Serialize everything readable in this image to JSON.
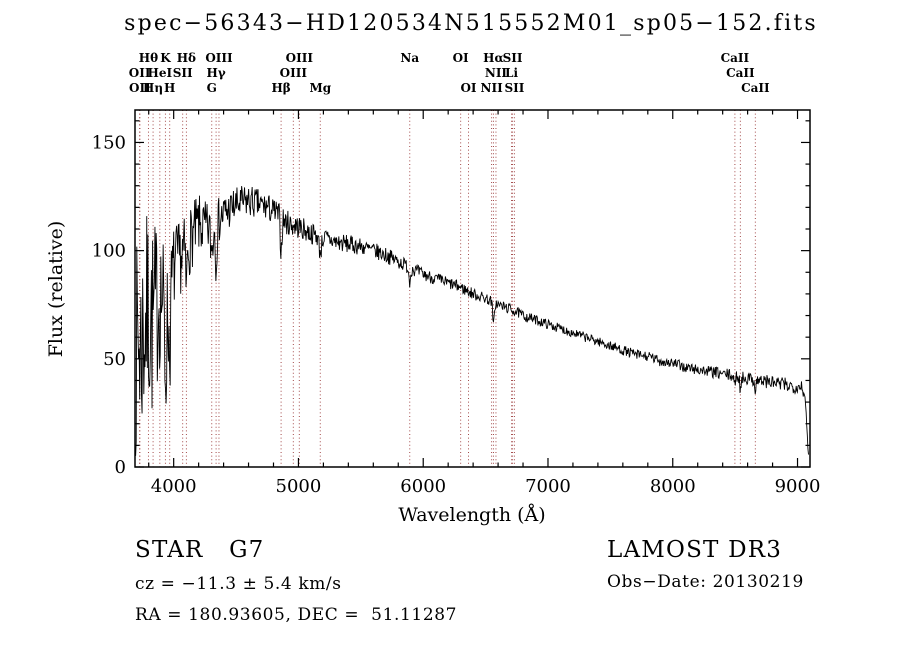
{
  "chart_data": {
    "type": "line",
    "title": "spec−56343−HD120534N515552M01_sp05−152.fits",
    "xlabel": "Wavelength (Å)",
    "ylabel": "Flux (relative)",
    "xlim": [
      3690,
      9100
    ],
    "ylim": [
      0,
      165
    ],
    "xticks": [
      4000,
      5000,
      6000,
      7000,
      8000,
      9000
    ],
    "yticks": [
      0,
      50,
      100,
      150
    ],
    "x_minor_step": 200,
    "y_minor_step": 10,
    "axis_color": "#000000",
    "spectrum_color": "#000000",
    "line_marker_color": "#a34a4a",
    "legend": "none",
    "grid": false,
    "seed": 7,
    "n_samples": 1150,
    "continuum": [
      [
        3695,
        52
      ],
      [
        3715,
        60
      ],
      [
        3735,
        55
      ],
      [
        3755,
        62
      ],
      [
        3775,
        68
      ],
      [
        3800,
        72
      ],
      [
        3825,
        66
      ],
      [
        3850,
        70
      ],
      [
        3875,
        78
      ],
      [
        3900,
        80
      ],
      [
        3925,
        74
      ],
      [
        3950,
        70
      ],
      [
        3975,
        82
      ],
      [
        4000,
        92
      ],
      [
        4030,
        95
      ],
      [
        4060,
        97
      ],
      [
        4090,
        100
      ],
      [
        4120,
        103
      ],
      [
        4150,
        107
      ],
      [
        4200,
        112
      ],
      [
        4250,
        110
      ],
      [
        4300,
        110
      ],
      [
        4350,
        113
      ],
      [
        4400,
        117
      ],
      [
        4450,
        119
      ],
      [
        4500,
        121
      ],
      [
        4550,
        122
      ],
      [
        4600,
        123
      ],
      [
        4650,
        122
      ],
      [
        4700,
        121
      ],
      [
        4750,
        120
      ],
      [
        4800,
        118
      ],
      [
        4850,
        116
      ],
      [
        4900,
        113
      ],
      [
        4950,
        112
      ],
      [
        5000,
        111
      ],
      [
        5100,
        108
      ],
      [
        5200,
        106
      ],
      [
        5300,
        104
      ],
      [
        5400,
        103
      ],
      [
        5500,
        102
      ],
      [
        5600,
        100
      ],
      [
        5700,
        98
      ],
      [
        5800,
        95
      ],
      [
        5900,
        92
      ],
      [
        6000,
        89
      ],
      [
        6100,
        87
      ],
      [
        6200,
        85
      ],
      [
        6300,
        83
      ],
      [
        6400,
        80
      ],
      [
        6500,
        78
      ],
      [
        6600,
        75
      ],
      [
        6700,
        73
      ],
      [
        6800,
        70
      ],
      [
        6900,
        68
      ],
      [
        7000,
        66
      ],
      [
        7100,
        64
      ],
      [
        7200,
        62
      ],
      [
        7300,
        60
      ],
      [
        7400,
        58
      ],
      [
        7500,
        56
      ],
      [
        7600,
        54
      ],
      [
        7700,
        52
      ],
      [
        7800,
        51
      ],
      [
        7900,
        49
      ],
      [
        8000,
        48
      ],
      [
        8100,
        46
      ],
      [
        8200,
        45
      ],
      [
        8300,
        44
      ],
      [
        8400,
        43
      ],
      [
        8500,
        42
      ],
      [
        8600,
        41
      ],
      [
        8700,
        40
      ],
      [
        8800,
        39
      ],
      [
        8900,
        38
      ],
      [
        9000,
        37
      ],
      [
        9030,
        38
      ],
      [
        9055,
        34
      ],
      [
        9075,
        18
      ],
      [
        9088,
        4
      ]
    ],
    "noise_profile": [
      [
        3695,
        48
      ],
      [
        3750,
        50
      ],
      [
        3800,
        48
      ],
      [
        3850,
        44
      ],
      [
        3900,
        32
      ],
      [
        3950,
        28
      ],
      [
        4000,
        20
      ],
      [
        4050,
        17
      ],
      [
        4100,
        16
      ],
      [
        4200,
        14
      ],
      [
        4300,
        12
      ],
      [
        4400,
        10
      ],
      [
        4500,
        8.5
      ],
      [
        4700,
        7
      ],
      [
        4900,
        6
      ],
      [
        5100,
        5
      ],
      [
        5300,
        4.5
      ],
      [
        5500,
        4
      ],
      [
        5800,
        3.5
      ],
      [
        6000,
        3
      ],
      [
        6300,
        2.8
      ],
      [
        6600,
        2.5
      ],
      [
        7000,
        2.2
      ],
      [
        7400,
        2.2
      ],
      [
        7800,
        2.4
      ],
      [
        8200,
        2.6
      ],
      [
        8600,
        3
      ],
      [
        8900,
        3.4
      ],
      [
        9088,
        3
      ]
    ],
    "absorption_features": [
      {
        "wavelength": 3934,
        "depth": 28,
        "sigma": 7
      },
      {
        "wavelength": 3968,
        "depth": 24,
        "sigma": 7
      },
      {
        "wavelength": 4102,
        "depth": 18,
        "sigma": 6
      },
      {
        "wavelength": 4305,
        "depth": 10,
        "sigma": 9
      },
      {
        "wavelength": 4340,
        "depth": 16,
        "sigma": 6
      },
      {
        "wavelength": 4861,
        "depth": 16,
        "sigma": 6
      },
      {
        "wavelength": 5175,
        "depth": 7,
        "sigma": 10
      },
      {
        "wavelength": 5892,
        "depth": 7,
        "sigma": 6
      },
      {
        "wavelength": 6563,
        "depth": 11,
        "sigma": 6
      },
      {
        "wavelength": 8498,
        "depth": 5,
        "sigma": 5
      },
      {
        "wavelength": 8542,
        "depth": 6,
        "sigma": 5
      },
      {
        "wavelength": 8662,
        "depth": 5,
        "sigma": 5
      }
    ],
    "spectral_lines": [
      {
        "label": "OII",
        "wavelength": 3727,
        "row": 2
      },
      {
        "label": "OII",
        "wavelength": 3729,
        "row": 3
      },
      {
        "label": "Hθ",
        "wavelength": 3798,
        "row": 1
      },
      {
        "label": "Hη",
        "wavelength": 3835,
        "row": 3
      },
      {
        "label": "HeI",
        "wavelength": 3889,
        "row": 2
      },
      {
        "label": "K",
        "wavelength": 3934,
        "row": 1
      },
      {
        "label": "H",
        "wavelength": 3968,
        "row": 3
      },
      {
        "label": "SII",
        "wavelength": 4072,
        "row": 2
      },
      {
        "label": "Hδ",
        "wavelength": 4102,
        "row": 1
      },
      {
        "label": "G",
        "wavelength": 4305,
        "row": 3
      },
      {
        "label": "Hγ",
        "wavelength": 4340,
        "row": 2
      },
      {
        "label": "OIII",
        "wavelength": 4363,
        "row": 1
      },
      {
        "label": "Hβ",
        "wavelength": 4861,
        "row": 3
      },
      {
        "label": "OIII",
        "wavelength": 4959,
        "row": 2
      },
      {
        "label": "OIII",
        "wavelength": 5007,
        "row": 1
      },
      {
        "label": "Mg",
        "wavelength": 5175,
        "row": 3
      },
      {
        "label": "Na",
        "wavelength": 5892,
        "row": 1
      },
      {
        "label": "OI",
        "wavelength": 6300,
        "row": 1
      },
      {
        "label": "OI",
        "wavelength": 6363,
        "row": 3
      },
      {
        "label": "NII",
        "wavelength": 6548,
        "row": 3
      },
      {
        "label": "Hα",
        "wavelength": 6563,
        "row": 1
      },
      {
        "label": "NII",
        "wavelength": 6583,
        "row": 2
      },
      {
        "label": "Li",
        "wavelength": 6708,
        "row": 2
      },
      {
        "label": "SII",
        "wavelength": 6716,
        "row": 1
      },
      {
        "label": "SII",
        "wavelength": 6731,
        "row": 3
      },
      {
        "label": "CaII",
        "wavelength": 8498,
        "row": 1
      },
      {
        "label": "CaII",
        "wavelength": 8542,
        "row": 2
      },
      {
        "label": "CaII",
        "wavelength": 8662,
        "row": 3
      }
    ]
  },
  "footer": {
    "star_class": "STAR   G7",
    "survey": "LAMOST DR3",
    "cz": "cz = −11.3 ± 5.4 km/s",
    "obs_date": "Obs−Date: 20130219",
    "ra_dec": "RA = 180.93605, DEC =  51.11287"
  }
}
